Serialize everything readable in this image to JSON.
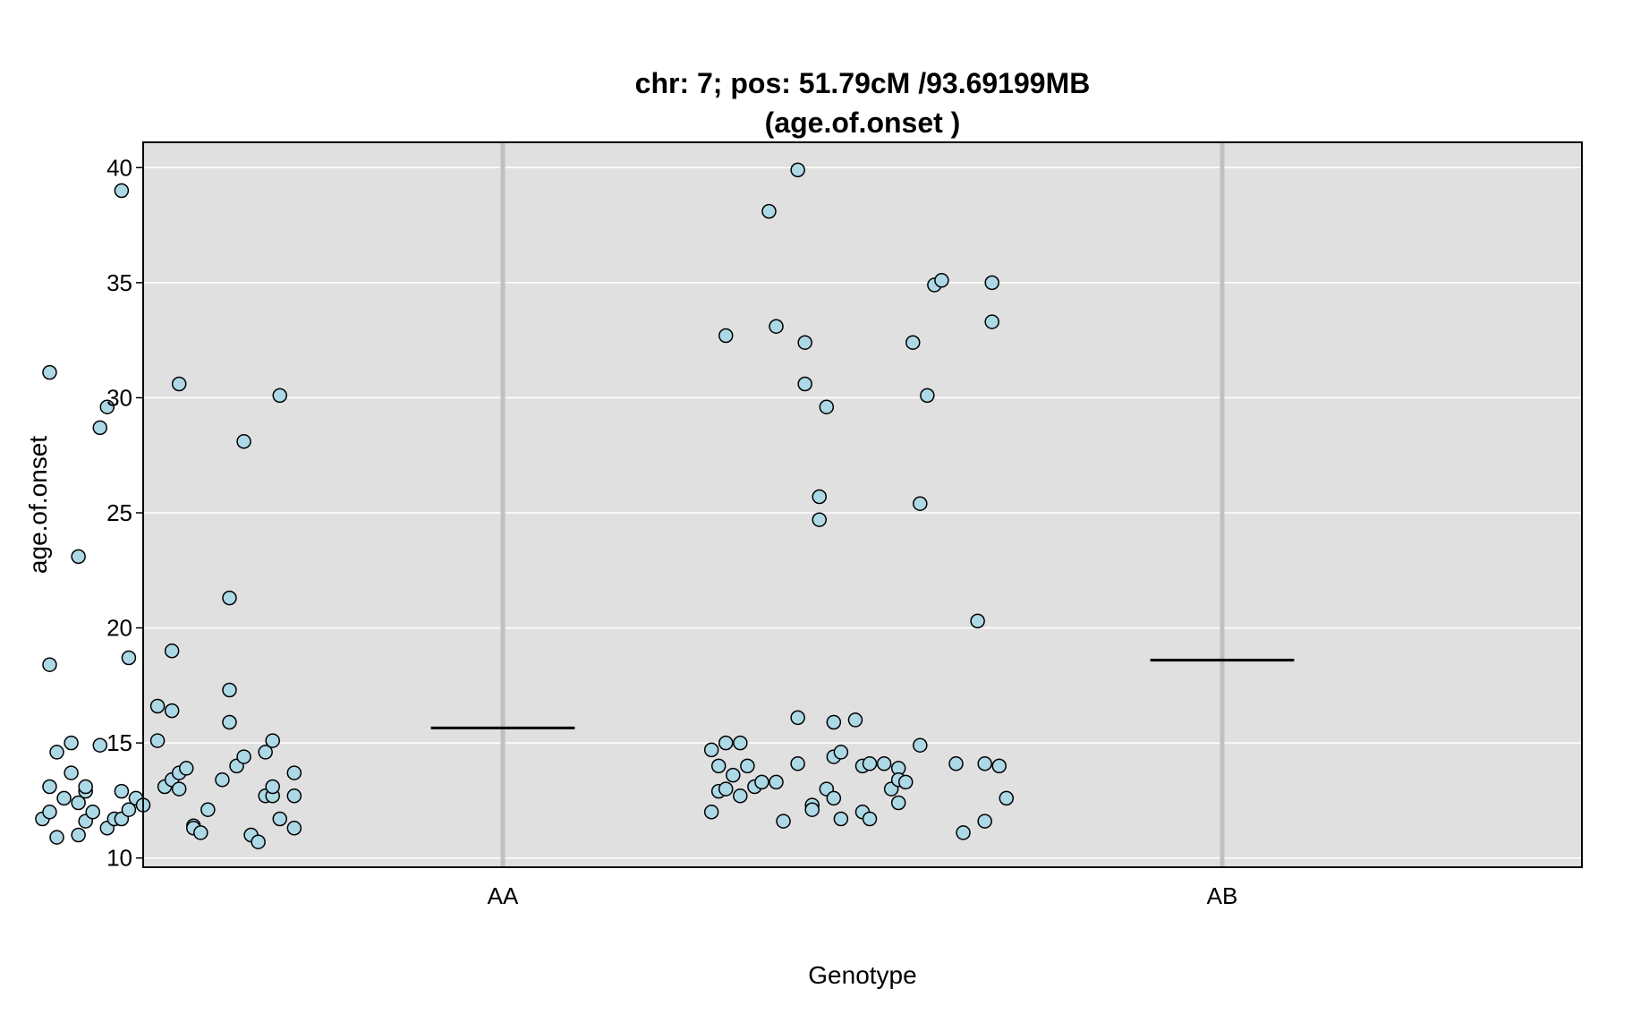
{
  "chart_data": {
    "type": "scatter",
    "title_line1": "chr: 7; pos: 51.79cM /93.69199MB",
    "title_line2": "(age.of.onset )",
    "xlabel": "Genotype",
    "ylabel": "age.of.onset",
    "categories": [
      "AA",
      "AB"
    ],
    "ylim": [
      9.6,
      41.1
    ],
    "yticks": [
      10,
      15,
      20,
      25,
      30,
      35,
      40
    ],
    "grid": true,
    "colors": {
      "panel_bg": "#e0e0e0",
      "grid": "#ffffff",
      "category_line": "#c0c0c0",
      "point_fill": "#add8e6",
      "point_stroke": "#000000",
      "mean_line": "#000000"
    },
    "means": [
      15.65,
      18.6
    ],
    "points": [
      {
        "category": "AA",
        "values": [
          {
            "x": 0.37,
            "y": 31.1
          },
          {
            "x": 0.37,
            "y": 18.4
          },
          {
            "x": 0.37,
            "y": 13.1
          },
          {
            "x": 0.36,
            "y": 11.7
          },
          {
            "x": 0.37,
            "y": 12.0
          },
          {
            "x": 0.38,
            "y": 14.6
          },
          {
            "x": 0.38,
            "y": 10.9
          },
          {
            "x": 0.39,
            "y": 12.6
          },
          {
            "x": 0.4,
            "y": 15.0
          },
          {
            "x": 0.4,
            "y": 13.7
          },
          {
            "x": 0.41,
            "y": 12.4
          },
          {
            "x": 0.41,
            "y": 23.1
          },
          {
            "x": 0.41,
            "y": 11.0
          },
          {
            "x": 0.42,
            "y": 12.9
          },
          {
            "x": 0.42,
            "y": 11.6
          },
          {
            "x": 0.42,
            "y": 13.1
          },
          {
            "x": 0.43,
            "y": 12.0
          },
          {
            "x": 0.44,
            "y": 28.7
          },
          {
            "x": 0.44,
            "y": 14.9
          },
          {
            "x": 0.45,
            "y": 29.6
          },
          {
            "x": 0.45,
            "y": 11.3
          },
          {
            "x": 0.46,
            "y": 11.7
          },
          {
            "x": 0.47,
            "y": 39.0
          },
          {
            "x": 0.47,
            "y": 12.9
          },
          {
            "x": 0.47,
            "y": 11.7
          },
          {
            "x": 0.48,
            "y": 18.7
          },
          {
            "x": 0.48,
            "y": 12.1
          },
          {
            "x": 0.49,
            "y": 12.6
          },
          {
            "x": 0.5,
            "y": 12.3
          },
          {
            "x": 0.52,
            "y": 16.6
          },
          {
            "x": 0.52,
            "y": 15.1
          },
          {
            "x": 0.53,
            "y": 13.1
          },
          {
            "x": 0.54,
            "y": 16.4
          },
          {
            "x": 0.54,
            "y": 13.4
          },
          {
            "x": 0.54,
            "y": 19.0
          },
          {
            "x": 0.55,
            "y": 30.6
          },
          {
            "x": 0.55,
            "y": 13.0
          },
          {
            "x": 0.55,
            "y": 13.7
          },
          {
            "x": 0.56,
            "y": 13.9
          },
          {
            "x": 0.57,
            "y": 11.4
          },
          {
            "x": 0.57,
            "y": 11.3
          },
          {
            "x": 0.58,
            "y": 11.1
          },
          {
            "x": 0.59,
            "y": 12.1
          },
          {
            "x": 0.61,
            "y": 13.4
          },
          {
            "x": 0.62,
            "y": 21.3
          },
          {
            "x": 0.62,
            "y": 17.3
          },
          {
            "x": 0.62,
            "y": 15.9
          },
          {
            "x": 0.63,
            "y": 14.0
          },
          {
            "x": 0.64,
            "y": 14.4
          },
          {
            "x": 0.64,
            "y": 28.1
          },
          {
            "x": 0.65,
            "y": 11.0
          },
          {
            "x": 0.66,
            "y": 10.7
          },
          {
            "x": 0.67,
            "y": 14.6
          },
          {
            "x": 0.67,
            "y": 12.7
          },
          {
            "x": 0.68,
            "y": 12.7
          },
          {
            "x": 0.68,
            "y": 15.1
          },
          {
            "x": 0.68,
            "y": 13.1
          },
          {
            "x": 0.69,
            "y": 30.1
          },
          {
            "x": 0.69,
            "y": 11.7
          },
          {
            "x": 0.71,
            "y": 13.7
          },
          {
            "x": 0.71,
            "y": 12.7
          },
          {
            "x": 0.71,
            "y": 11.3
          }
        ]
      },
      {
        "category": "AB",
        "values": [
          {
            "x": 1.29,
            "y": 12.0
          },
          {
            "x": 1.29,
            "y": 14.7
          },
          {
            "x": 1.3,
            "y": 14.0
          },
          {
            "x": 1.3,
            "y": 12.9
          },
          {
            "x": 1.31,
            "y": 13.0
          },
          {
            "x": 1.31,
            "y": 15.0
          },
          {
            "x": 1.31,
            "y": 32.7
          },
          {
            "x": 1.32,
            "y": 13.6
          },
          {
            "x": 1.33,
            "y": 15.0
          },
          {
            "x": 1.33,
            "y": 12.7
          },
          {
            "x": 1.34,
            "y": 14.0
          },
          {
            "x": 1.35,
            "y": 13.1
          },
          {
            "x": 1.36,
            "y": 13.3
          },
          {
            "x": 1.37,
            "y": 38.1
          },
          {
            "x": 1.38,
            "y": 33.1
          },
          {
            "x": 1.38,
            "y": 13.3
          },
          {
            "x": 1.39,
            "y": 11.6
          },
          {
            "x": 1.41,
            "y": 16.1
          },
          {
            "x": 1.41,
            "y": 14.1
          },
          {
            "x": 1.41,
            "y": 39.9
          },
          {
            "x": 1.42,
            "y": 32.4
          },
          {
            "x": 1.42,
            "y": 30.6
          },
          {
            "x": 1.43,
            "y": 12.3
          },
          {
            "x": 1.43,
            "y": 12.1
          },
          {
            "x": 1.44,
            "y": 25.7
          },
          {
            "x": 1.44,
            "y": 24.7
          },
          {
            "x": 1.45,
            "y": 29.6
          },
          {
            "x": 1.45,
            "y": 13.0
          },
          {
            "x": 1.46,
            "y": 12.6
          },
          {
            "x": 1.46,
            "y": 15.9
          },
          {
            "x": 1.46,
            "y": 14.4
          },
          {
            "x": 1.47,
            "y": 14.6
          },
          {
            "x": 1.47,
            "y": 11.7
          },
          {
            "x": 1.49,
            "y": 16.0
          },
          {
            "x": 1.5,
            "y": 12.0
          },
          {
            "x": 1.5,
            "y": 14.0
          },
          {
            "x": 1.51,
            "y": 14.1
          },
          {
            "x": 1.51,
            "y": 11.7
          },
          {
            "x": 1.53,
            "y": 14.1
          },
          {
            "x": 1.54,
            "y": 13.0
          },
          {
            "x": 1.55,
            "y": 12.4
          },
          {
            "x": 1.55,
            "y": 13.9
          },
          {
            "x": 1.55,
            "y": 13.4
          },
          {
            "x": 1.56,
            "y": 13.3
          },
          {
            "x": 1.57,
            "y": 32.4
          },
          {
            "x": 1.58,
            "y": 25.4
          },
          {
            "x": 1.58,
            "y": 14.9
          },
          {
            "x": 1.59,
            "y": 30.1
          },
          {
            "x": 1.6,
            "y": 34.9
          },
          {
            "x": 1.61,
            "y": 35.1
          },
          {
            "x": 1.63,
            "y": 14.1
          },
          {
            "x": 1.64,
            "y": 11.1
          },
          {
            "x": 1.66,
            "y": 20.3
          },
          {
            "x": 1.67,
            "y": 14.1
          },
          {
            "x": 1.67,
            "y": 11.6
          },
          {
            "x": 1.68,
            "y": 35.0
          },
          {
            "x": 1.68,
            "y": 33.3
          },
          {
            "x": 1.69,
            "y": 14.0
          },
          {
            "x": 1.7,
            "y": 12.6
          }
        ]
      }
    ]
  }
}
